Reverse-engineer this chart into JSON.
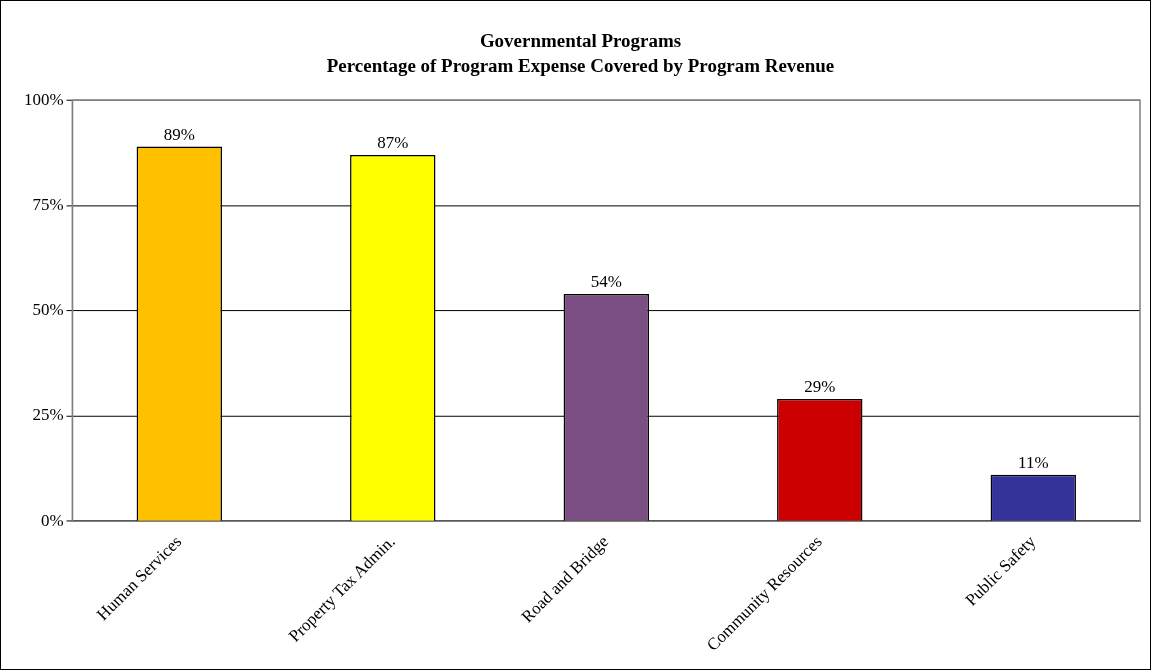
{
  "chart_data": {
    "type": "bar",
    "title": "Governmental Programs",
    "subtitle": "Percentage of Program Expense Covered by Program Revenue",
    "categories": [
      "Human Services",
      "Property Tax Admin.",
      "Road and Bridge",
      "Community Resources",
      "Public Safety"
    ],
    "values": [
      89,
      87,
      54,
      29,
      11
    ],
    "colors": [
      "#ffc000",
      "#ffff00",
      "#7b4f84",
      "#cc0000",
      "#333399"
    ],
    "value_labels": [
      "89%",
      "87%",
      "54%",
      "29%",
      "11%"
    ],
    "ylim": [
      0,
      100
    ],
    "yticks": [
      {
        "value": 0,
        "label": "0%"
      },
      {
        "value": 25,
        "label": "25%"
      },
      {
        "value": 50,
        "label": "50%"
      },
      {
        "value": 75,
        "label": "75%"
      },
      {
        "value": 100,
        "label": "100%"
      }
    ],
    "grid": "y",
    "legend": false
  }
}
